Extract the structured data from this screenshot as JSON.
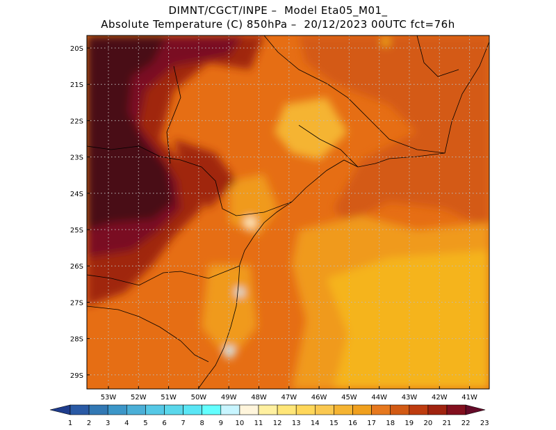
{
  "header": {
    "title_line1": "DIMNT/CGCT/INPE –  Model Eta05_M01_",
    "title_line2": "Absolute Temperature (C) 850hPa –  20/12/2023 00UTC fct=76h"
  },
  "map": {
    "lat_labels": [
      "20S",
      "21S",
      "22S",
      "23S",
      "24S",
      "25S",
      "26S",
      "27S",
      "28S",
      "29S"
    ],
    "lon_labels": [
      "53W",
      "52W",
      "51W",
      "50W",
      "49W",
      "48W",
      "47W",
      "46W",
      "45W",
      "44W",
      "43W",
      "42W",
      "41W"
    ]
  },
  "colorbar": {
    "labels": [
      "1",
      "2",
      "3",
      "4",
      "5",
      "6",
      "7",
      "8",
      "9",
      "10",
      "11",
      "12",
      "13",
      "14",
      "15",
      "16",
      "17",
      "18",
      "19",
      "20",
      "21",
      "22",
      "23"
    ],
    "colors": [
      "#1e3c8c",
      "#2a5aa5",
      "#3278b4",
      "#3c96c8",
      "#4bafd7",
      "#55c8e6",
      "#5ad7eb",
      "#5ae6f5",
      "#64ffff",
      "#c8f5ff",
      "#fff5dc",
      "#fff0a0",
      "#ffe678",
      "#ffd75a",
      "#fac850",
      "#f5b432",
      "#f0a01e",
      "#e6781e",
      "#d25a14",
      "#be3c0f",
      "#a0230f",
      "#820f1e",
      "#640a28"
    ]
  }
}
